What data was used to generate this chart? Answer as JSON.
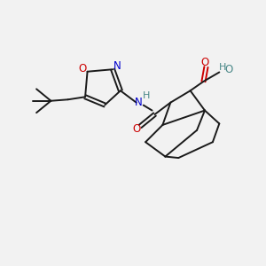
{
  "background_color": "#f2f2f2",
  "bond_color": "#1a1a1a",
  "oxygen_color": "#cc0000",
  "nitrogen_color": "#0000cc",
  "hydrogen_color": "#4a8888",
  "figsize": [
    3.0,
    3.0
  ],
  "dpi": 100,
  "xlim": [
    0,
    10
  ],
  "ylim": [
    0,
    10
  ]
}
